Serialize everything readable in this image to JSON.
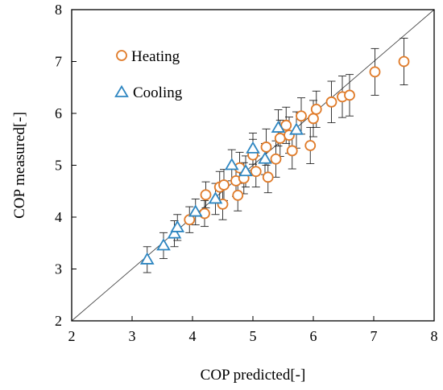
{
  "chart_data": {
    "type": "scatter",
    "xlabel": "COP predicted[-]",
    "ylabel": "COP measured[-]",
    "xlim": [
      2,
      8
    ],
    "ylim": [
      2,
      8
    ],
    "xticks": [
      "2",
      "3",
      "4",
      "5",
      "6",
      "7",
      "8"
    ],
    "yticks": [
      "2",
      "3",
      "4",
      "5",
      "6",
      "7",
      "8"
    ],
    "grid": false,
    "legend_position": "top-left",
    "reference_line": {
      "from": [
        2,
        2
      ],
      "to": [
        8,
        8
      ]
    },
    "series": [
      {
        "name": "Heating",
        "marker": "circle",
        "color": "#E07B29",
        "points": [
          {
            "x": 3.95,
            "y": 3.95,
            "err": 0.25
          },
          {
            "x": 4.2,
            "y": 4.07,
            "err": 0.25
          },
          {
            "x": 4.22,
            "y": 4.43,
            "err": 0.25
          },
          {
            "x": 4.45,
            "y": 4.58,
            "err": 0.3
          },
          {
            "x": 4.5,
            "y": 4.25,
            "err": 0.3
          },
          {
            "x": 4.52,
            "y": 4.62,
            "err": 0.3
          },
          {
            "x": 4.72,
            "y": 4.7,
            "err": 0.3
          },
          {
            "x": 4.75,
            "y": 4.42,
            "err": 0.3
          },
          {
            "x": 4.78,
            "y": 4.95,
            "err": 0.3
          },
          {
            "x": 4.85,
            "y": 4.75,
            "err": 0.3
          },
          {
            "x": 5.0,
            "y": 5.2,
            "err": 0.3
          },
          {
            "x": 5.05,
            "y": 4.88,
            "err": 0.3
          },
          {
            "x": 5.22,
            "y": 5.35,
            "err": 0.35
          },
          {
            "x": 5.25,
            "y": 4.77,
            "err": 0.3
          },
          {
            "x": 5.38,
            "y": 5.12,
            "err": 0.35
          },
          {
            "x": 5.45,
            "y": 5.52,
            "err": 0.35
          },
          {
            "x": 5.55,
            "y": 5.77,
            "err": 0.35
          },
          {
            "x": 5.6,
            "y": 5.58,
            "err": 0.35
          },
          {
            "x": 5.65,
            "y": 5.28,
            "err": 0.35
          },
          {
            "x": 5.8,
            "y": 5.95,
            "err": 0.35
          },
          {
            "x": 5.95,
            "y": 5.38,
            "err": 0.35
          },
          {
            "x": 6.0,
            "y": 5.9,
            "err": 0.35
          },
          {
            "x": 6.05,
            "y": 6.08,
            "err": 0.35
          },
          {
            "x": 6.3,
            "y": 6.22,
            "err": 0.4
          },
          {
            "x": 6.48,
            "y": 6.32,
            "err": 0.4
          },
          {
            "x": 6.6,
            "y": 6.35,
            "err": 0.4
          },
          {
            "x": 7.02,
            "y": 6.8,
            "err": 0.45
          },
          {
            "x": 7.5,
            "y": 7.0,
            "err": 0.45
          }
        ]
      },
      {
        "name": "Cooling",
        "marker": "triangle",
        "color": "#2E86C1",
        "points": [
          {
            "x": 3.25,
            "y": 3.18,
            "err": 0.25
          },
          {
            "x": 3.52,
            "y": 3.45,
            "err": 0.25
          },
          {
            "x": 3.7,
            "y": 3.68,
            "err": 0.25
          },
          {
            "x": 3.75,
            "y": 3.8,
            "err": 0.25
          },
          {
            "x": 4.05,
            "y": 4.1,
            "err": 0.25
          },
          {
            "x": 4.38,
            "y": 4.35,
            "err": 0.3
          },
          {
            "x": 4.65,
            "y": 5.0,
            "err": 0.3
          },
          {
            "x": 4.88,
            "y": 4.88,
            "err": 0.3
          },
          {
            "x": 5.0,
            "y": 5.32,
            "err": 0.3
          },
          {
            "x": 5.2,
            "y": 5.12,
            "err": 0.3
          },
          {
            "x": 5.42,
            "y": 5.72,
            "err": 0.35
          },
          {
            "x": 5.72,
            "y": 5.68,
            "err": 0.35
          }
        ]
      }
    ]
  }
}
